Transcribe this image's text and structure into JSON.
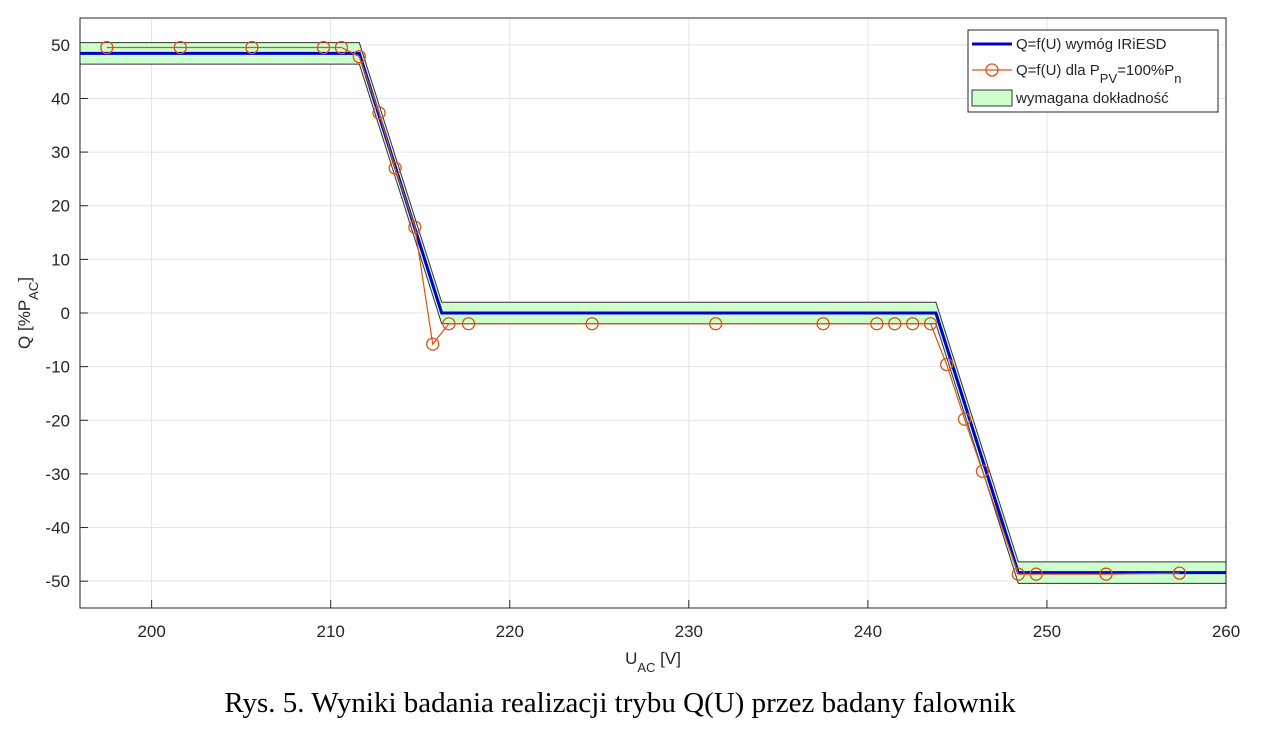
{
  "chart_data": {
    "type": "line",
    "caption": "Rys. 5. Wyniki badania realizacji trybu Q(U) przez badany falownik",
    "x_label": [
      {
        "text": "U"
      },
      {
        "text": "AC",
        "sub": true
      },
      {
        "text": " [V]"
      }
    ],
    "y_label": [
      {
        "text": "Q [%P"
      },
      {
        "text": "AC",
        "sub": true
      },
      {
        "text": "]"
      }
    ],
    "xlim": [
      196,
      260
    ],
    "ylim": [
      -55,
      55
    ],
    "xticks": [
      200,
      210,
      220,
      230,
      240,
      250,
      260
    ],
    "yticks": [
      -50,
      -40,
      -30,
      -20,
      -10,
      0,
      10,
      20,
      30,
      40,
      50
    ],
    "grid": true,
    "legend": "top-right",
    "band": {
      "name": [
        {
          "text": "wymagana dokładność"
        }
      ],
      "color": "#ccffcc",
      "x": [
        196,
        211.6,
        216.2,
        243.8,
        248.4,
        260
      ],
      "upper": [
        50.4,
        50.4,
        2,
        2,
        -46.4,
        -46.4
      ],
      "lower": [
        46.4,
        46.4,
        -2,
        -2,
        -50.4,
        -50.4
      ]
    },
    "series": [
      {
        "name": [
          {
            "text": "Q=f(U) wymóg IRiESD"
          }
        ],
        "color": "#0000cc",
        "marker": "none",
        "x": [
          196,
          211.6,
          216.2,
          243.8,
          248.4,
          260
        ],
        "values": [
          48.4,
          48.4,
          0,
          0,
          -48.4,
          -48.4
        ]
      },
      {
        "name": [
          {
            "text": "Q=f(U) dla P"
          },
          {
            "text": "PV",
            "sub": true
          },
          {
            "text": "=100%P"
          },
          {
            "text": "n",
            "sub": true
          }
        ],
        "color": "#d95319",
        "marker": "circle",
        "x": [
          197.5,
          201.6,
          205.6,
          209.6,
          210.6,
          211.6,
          212.7,
          213.6,
          214.7,
          215.7,
          216.6,
          217.7,
          224.6,
          231.5,
          237.5,
          240.5,
          241.5,
          242.5,
          243.5,
          244.4,
          245.4,
          246.4,
          248.4,
          249.4,
          253.3,
          257.4
        ],
        "values": [
          49.5,
          49.5,
          49.5,
          49.5,
          49.5,
          47.8,
          37.3,
          27,
          16,
          -5.8,
          -2,
          -2,
          -2,
          -2,
          -2,
          -2,
          -2,
          -2,
          -2,
          -9.6,
          -19.8,
          -29.5,
          -48.7,
          -48.7,
          -48.7,
          -48.5
        ]
      }
    ]
  }
}
